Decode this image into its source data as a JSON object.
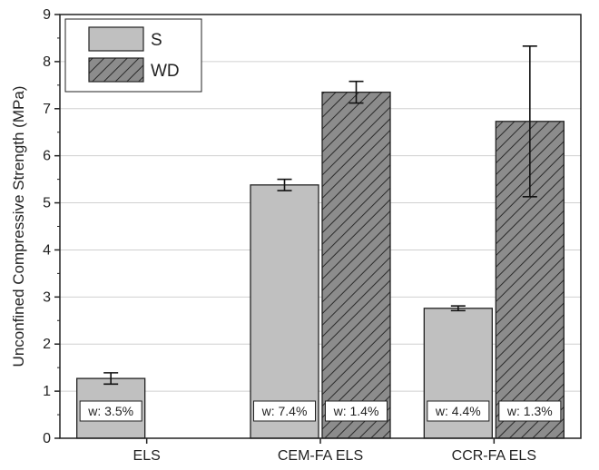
{
  "chart_data": {
    "type": "bar",
    "ylabel": "Unconfined Compressive Strength (MPa)",
    "xlabel": "",
    "ylim": [
      0,
      9
    ],
    "yticks": [
      0,
      1,
      2,
      3,
      4,
      5,
      6,
      7,
      8,
      9
    ],
    "grid": "horizontal",
    "legend_position": "top-left",
    "categories": [
      "ELS",
      "CEM-FA ELS",
      "CCR-FA ELS"
    ],
    "series": [
      {
        "name": "S",
        "pattern": "solid",
        "color": "#c0c0c0",
        "values": [
          1.27,
          5.38,
          2.76
        ],
        "error": [
          0.12,
          0.12,
          0.05
        ],
        "moisture_labels": [
          "w: 3.5%",
          "w: 7.4%",
          "w: 4.4%"
        ]
      },
      {
        "name": "WD",
        "pattern": "hatched",
        "color": "#8c8c8c",
        "values": [
          null,
          7.35,
          6.73
        ],
        "error": [
          null,
          0.23,
          1.6
        ],
        "moisture_labels": [
          "",
          "w: 1.4%",
          "w: 1.3%"
        ]
      }
    ]
  }
}
